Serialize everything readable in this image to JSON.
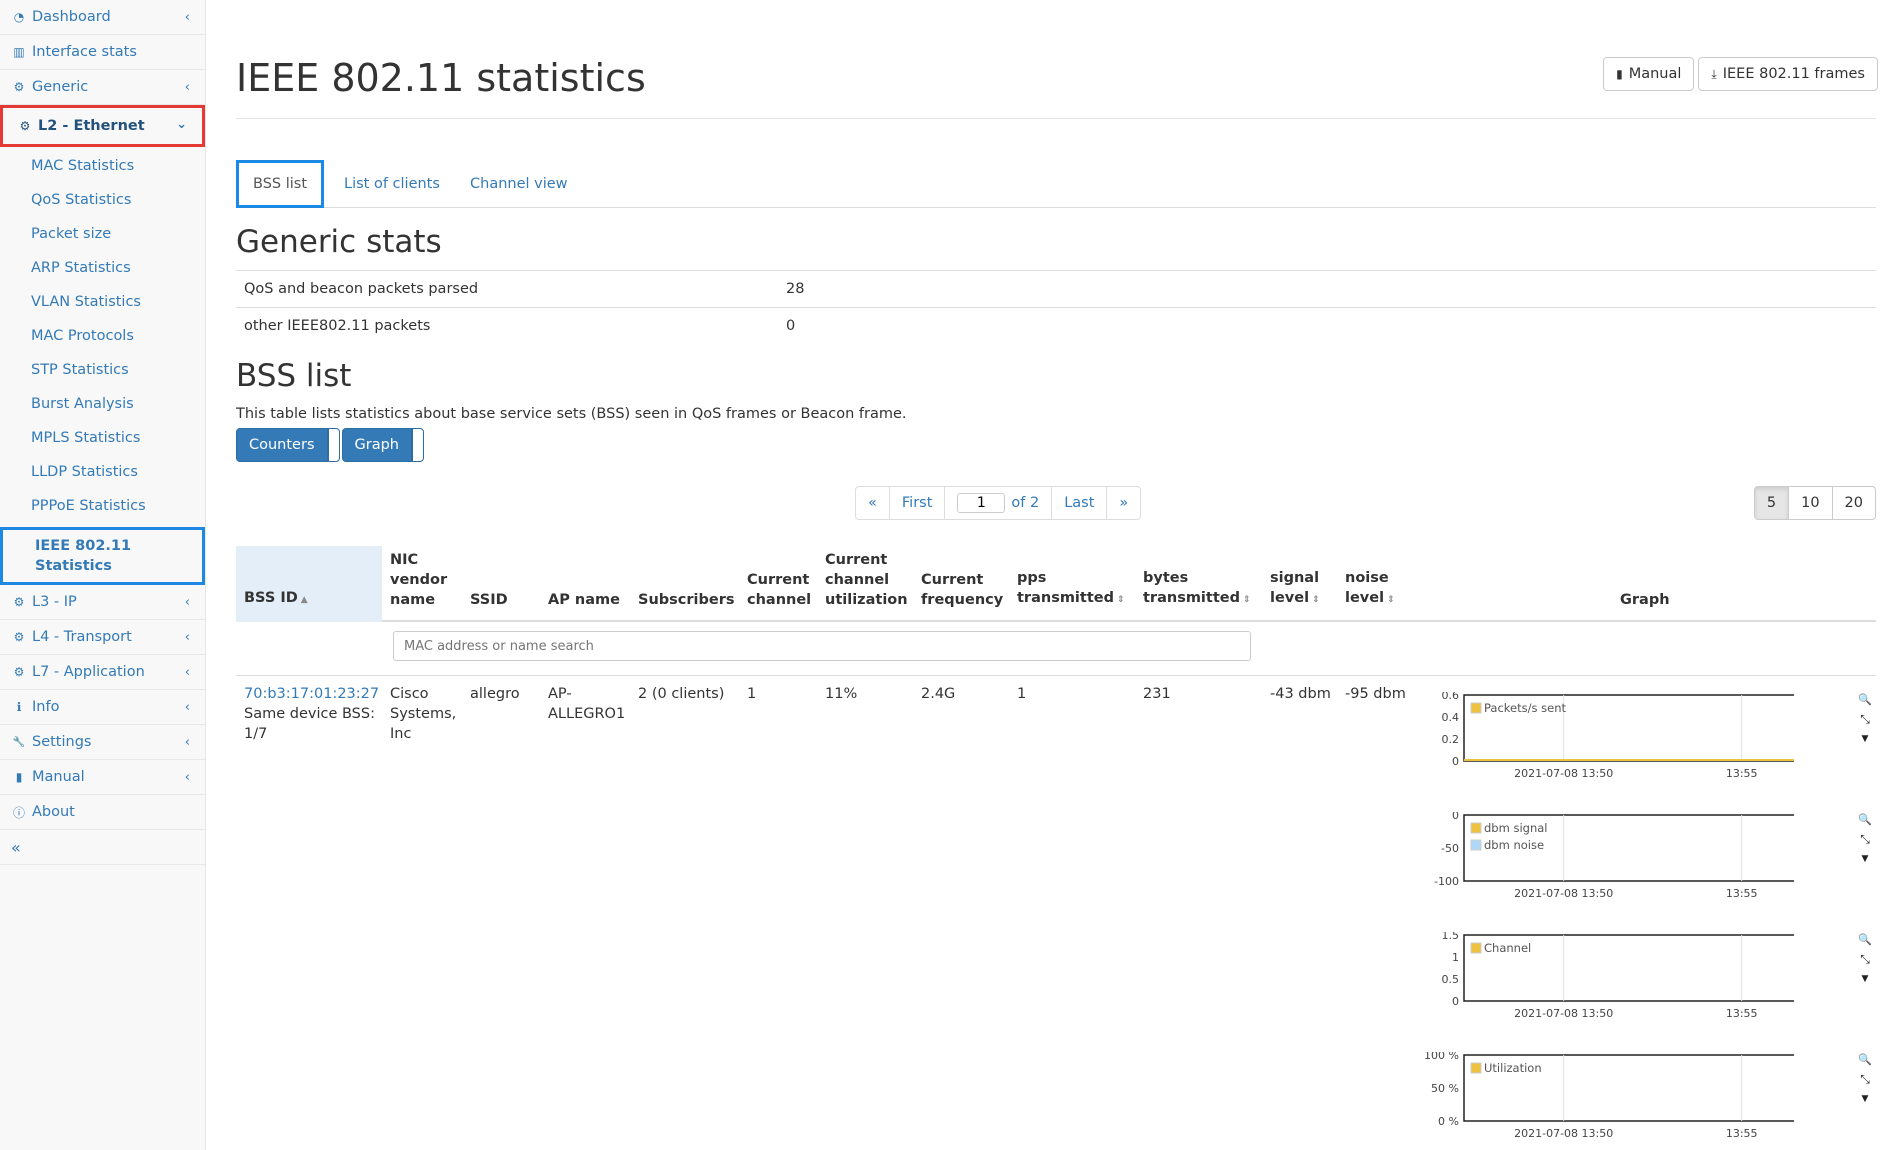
{
  "sidebar": {
    "items_top": [
      {
        "label": "Dashboard",
        "icon": "dashboard-icon",
        "chevron": true
      },
      {
        "label": "Interface stats",
        "icon": "bar-chart-icon",
        "chevron": false
      },
      {
        "label": "Generic",
        "icon": "gear-icon",
        "chevron": true
      }
    ],
    "active": {
      "label": "L2 - Ethernet",
      "icon": "gear-icon"
    },
    "sub_items": [
      "MAC Statistics",
      "QoS Statistics",
      "Packet size",
      "ARP Statistics",
      "VLAN Statistics",
      "MAC Protocols",
      "STP Statistics",
      "Burst Analysis",
      "MPLS Statistics",
      "LLDP Statistics",
      "PPPoE Statistics"
    ],
    "selected_sub": {
      "line1": "IEEE 802.11",
      "line2": "Statistics"
    },
    "items_bottom": [
      {
        "label": "L3 - IP",
        "icon": "gear-icon",
        "chevron": true
      },
      {
        "label": "L4 - Transport",
        "icon": "gear-icon",
        "chevron": true
      },
      {
        "label": "L7 - Application",
        "icon": "gear-icon",
        "chevron": true
      },
      {
        "label": "Info",
        "icon": "info-icon",
        "chevron": true
      },
      {
        "label": "Settings",
        "icon": "wrench-icon",
        "chevron": true
      },
      {
        "label": "Manual",
        "icon": "book-icon",
        "chevron": true
      },
      {
        "label": "About",
        "icon": "info-circle-icon",
        "chevron": false
      }
    ],
    "collapse": "«"
  },
  "header": {
    "title": "IEEE 802.11 statistics",
    "manual_btn": "Manual",
    "frames_btn": "IEEE 802.11 frames"
  },
  "tabs": [
    "BSS list",
    "List of clients",
    "Channel view"
  ],
  "generic": {
    "title": "Generic stats",
    "rows": [
      {
        "label": "QoS and beacon packets parsed",
        "value": "28"
      },
      {
        "label": "other IEEE802.11 packets",
        "value": "0"
      }
    ]
  },
  "bss": {
    "title": "BSS list",
    "description": "This table lists statistics about base service sets (BSS) seen in QoS frames or Beacon frame.",
    "counters_btn": "Counters",
    "graph_btn": "Graph"
  },
  "pager": {
    "prev": "«",
    "first": "First",
    "page": "1",
    "of": "of 2",
    "last": "Last",
    "next": "»"
  },
  "page_sizes": [
    "5",
    "10",
    "20"
  ],
  "table": {
    "headers": {
      "bss_id": "BSS ID",
      "nic": [
        "NIC",
        "vendor",
        "name"
      ],
      "ssid": "SSID",
      "ap": "AP name",
      "subs": "Subscribers",
      "chan": [
        "Current",
        "channel"
      ],
      "util": [
        "Current",
        "channel",
        "utilization"
      ],
      "freq": [
        "Current",
        "frequency"
      ],
      "pps": [
        "pps",
        "transmitted"
      ],
      "bytes": [
        "bytes",
        "transmitted"
      ],
      "signal": [
        "signal",
        "level"
      ],
      "noise": [
        "noise",
        "level"
      ],
      "graph": "Graph"
    },
    "search_placeholder": "MAC address or name search",
    "row": {
      "bss_id": "70:b3:17:01:23:27",
      "same_device": [
        "Same device BSS:",
        "1/7"
      ],
      "nic": [
        "Cisco",
        "Systems,",
        "Inc"
      ],
      "ssid": "allegro",
      "ap": [
        "AP-",
        "ALLEGRO1"
      ],
      "subs": "2 (0 clients)",
      "chan": "1",
      "util": "11%",
      "freq": "2.4G",
      "pps": "1",
      "bytes": "231",
      "signal": "-43 dbm",
      "noise": "-95 dbm"
    }
  },
  "charts": [
    {
      "y_ticks": [
        "0.6",
        "0.4",
        "0.2",
        "0"
      ],
      "legend": [
        {
          "name": "Packets/s sent",
          "color": "#edc240"
        }
      ],
      "x_ticks": [
        "2021-07-08 13:50",
        "13:55"
      ]
    },
    {
      "y_ticks": [
        "0",
        "-50",
        "-100"
      ],
      "legend": [
        {
          "name": "dbm signal",
          "color": "#edc240"
        },
        {
          "name": "dbm noise",
          "color": "#afd8f8"
        }
      ],
      "x_ticks": [
        "2021-07-08 13:50",
        "13:55"
      ]
    },
    {
      "y_ticks": [
        "1.5",
        "1",
        "0.5",
        "0"
      ],
      "legend": [
        {
          "name": "Channel",
          "color": "#edc240"
        }
      ],
      "x_ticks": [
        "2021-07-08 13:50",
        "13:55"
      ]
    },
    {
      "y_ticks": [
        "100 %",
        "50 %",
        "0 %"
      ],
      "legend": [
        {
          "name": "Utilization",
          "color": "#edc240"
        }
      ],
      "x_ticks": [
        "2021-07-08 13:50",
        "13:55"
      ]
    }
  ],
  "colors": {
    "link": "#337ab7",
    "primary": "#337ab7",
    "active_nav_border": "#e53935",
    "selected_border": "#1e88e5"
  }
}
